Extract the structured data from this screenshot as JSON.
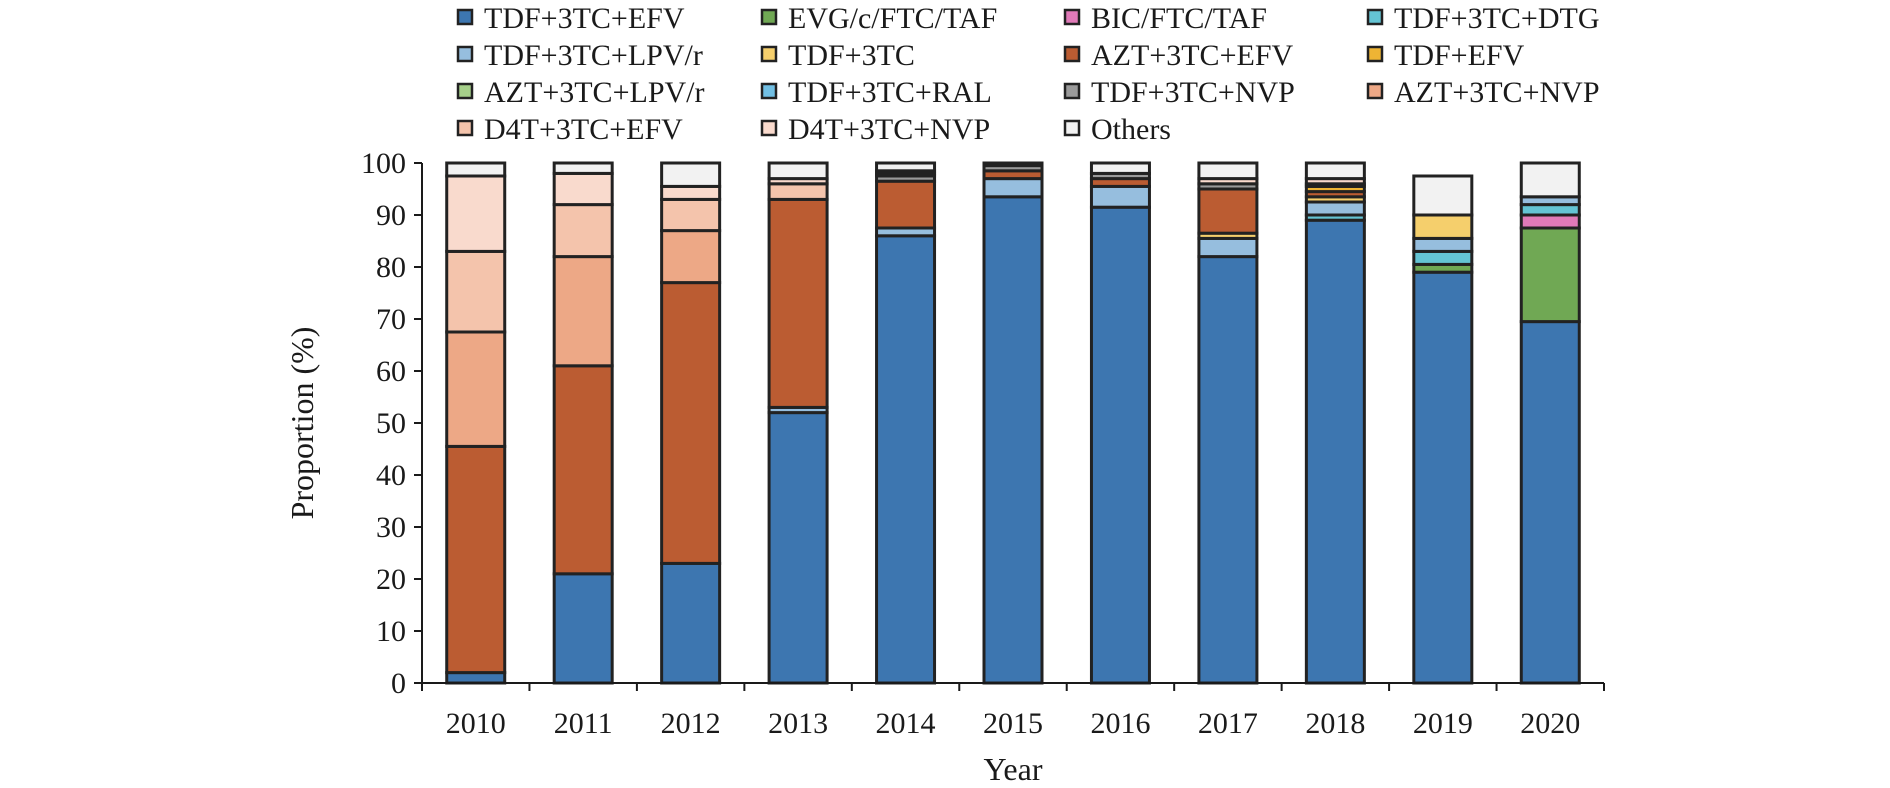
{
  "chart_data": {
    "type": "bar",
    "stacked": true,
    "xlabel": "Year",
    "ylabel": "Proportion (%)",
    "ylim": [
      0,
      100
    ],
    "yticks": [
      0,
      10,
      20,
      30,
      40,
      50,
      60,
      70,
      80,
      90,
      100
    ],
    "grid": false,
    "legend_position": "top",
    "categories": [
      "2010",
      "2011",
      "2012",
      "2013",
      "2014",
      "2015",
      "2016",
      "2017",
      "2018",
      "2019",
      "2020"
    ],
    "series": [
      {
        "name": "TDF+3TC+EFV",
        "color": "#3d76b0",
        "values": [
          2,
          21,
          23,
          52,
          86,
          93.5,
          91.5,
          82,
          89,
          79,
          69.5
        ]
      },
      {
        "name": "EVG/c/FTC/TAF",
        "color": "#70a854",
        "values": [
          0,
          0,
          0,
          0,
          0,
          0,
          0,
          0,
          0,
          1.5,
          18
        ]
      },
      {
        "name": "BIC/FTC/TAF",
        "color": "#e07ab8",
        "values": [
          0,
          0,
          0,
          0,
          0,
          0,
          0,
          0,
          0,
          0,
          2.5
        ]
      },
      {
        "name": "TDF+3TC+DTG",
        "color": "#64c4d4",
        "values": [
          0,
          0,
          0,
          0,
          0,
          0,
          0,
          0,
          1,
          2.5,
          2
        ]
      },
      {
        "name": "TDF+3TC+LPV/r",
        "color": "#96bede",
        "values": [
          0,
          0,
          0,
          1,
          1.5,
          3.5,
          4,
          3.5,
          2.5,
          2.5,
          1.5
        ]
      },
      {
        "name": "TDF+3TC",
        "color": "#f5cf6c",
        "values": [
          0,
          0,
          0,
          0,
          0,
          0,
          0,
          1,
          1,
          4.5,
          0
        ]
      },
      {
        "name": "AZT+3TC+EFV",
        "color": "#bb5c32",
        "values": [
          43.5,
          40,
          54,
          40,
          9,
          1.5,
          1.5,
          8.5,
          1,
          0,
          0
        ]
      },
      {
        "name": "TDF+EFV",
        "color": "#eeb434",
        "values": [
          0,
          0,
          0,
          0,
          0,
          0,
          0,
          0,
          1,
          0,
          0
        ]
      },
      {
        "name": "AZT+3TC+LPV/r",
        "color": "#a6d08a",
        "values": [
          0,
          0,
          0,
          0,
          0,
          0,
          0,
          0,
          0,
          0,
          0
        ]
      },
      {
        "name": "TDF+3TC+RAL",
        "color": "#72c0e4",
        "values": [
          0,
          0,
          0,
          0,
          0,
          0,
          0,
          0,
          0,
          0,
          0
        ]
      },
      {
        "name": "TDF+3TC+NVP",
        "color": "#9a9a9a",
        "values": [
          0,
          0,
          0,
          0,
          1,
          1,
          1,
          1,
          0.5,
          0,
          0
        ]
      },
      {
        "name": "AZT+3TC+NVP",
        "color": "#eda886",
        "values": [
          22,
          21,
          10,
          0,
          0,
          0,
          0,
          0,
          0,
          0,
          0
        ]
      },
      {
        "name": "D4T+3TC+EFV",
        "color": "#f4c4ac",
        "values": [
          15.5,
          10,
          6,
          3,
          0.5,
          0,
          0,
          0,
          0,
          0,
          0
        ]
      },
      {
        "name": "D4T+3TC+NVP",
        "color": "#f9dacd",
        "values": [
          14.5,
          6,
          2.5,
          1,
          0.5,
          0,
          0,
          1,
          1,
          0,
          0
        ]
      },
      {
        "name": "Others",
        "color": "#f2f2f2",
        "values": [
          2.5,
          2,
          4.5,
          3,
          1.5,
          0.5,
          2,
          3,
          3,
          7.5,
          6.5
        ]
      }
    ]
  }
}
